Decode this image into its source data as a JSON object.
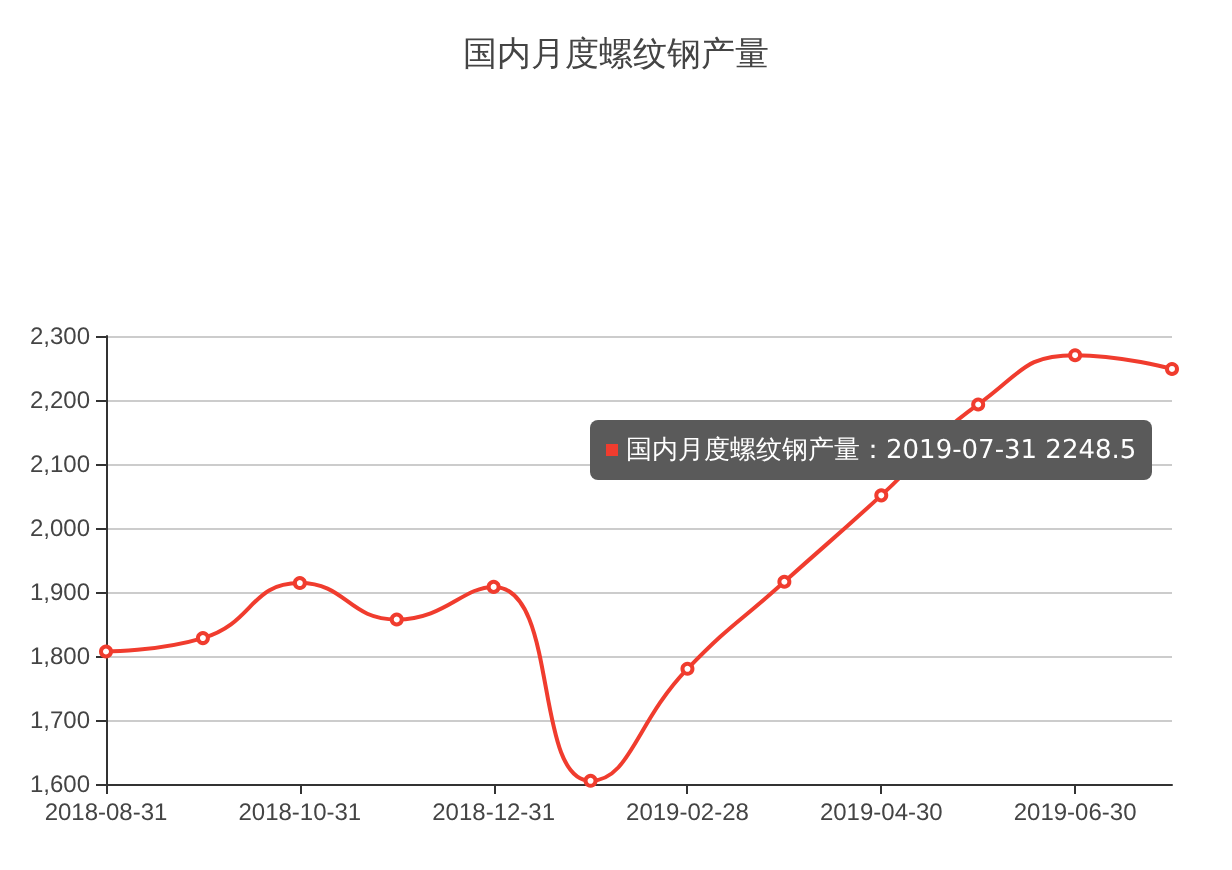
{
  "chart_data": {
    "type": "line",
    "title": "国内月度螺纹钢产量",
    "categories": [
      "2018-08-31",
      null,
      "2018-10-31",
      null,
      "2018-12-31",
      null,
      "2019-02-28",
      null,
      "2019-04-30",
      null,
      "2019-06-30",
      null
    ],
    "series": [
      {
        "color": "#f03c2e",
        "values": [
          1807,
          1828,
          1914,
          1857,
          1908,
          1605,
          1780,
          1916,
          2051,
          2193,
          2270,
          2248.5
        ]
      }
    ],
    "ylim": [
      1600,
      2300
    ],
    "yticks": [
      {
        "value": 1600,
        "label": "1,600"
      },
      {
        "value": 1700,
        "label": "1,700"
      },
      {
        "value": 1800,
        "label": "1,800"
      },
      {
        "value": 1900,
        "label": "1,900"
      },
      {
        "value": 2000,
        "label": "2,000"
      },
      {
        "value": 2100,
        "label": "2,100"
      },
      {
        "value": 2200,
        "label": "2,200"
      },
      {
        "value": 2300,
        "label": "2,300"
      }
    ],
    "grid": "y",
    "marker": "circle",
    "line_style": "solid",
    "annotations": [
      "国内月度螺纹钢产量：2019-07-31 2248.5"
    ]
  }
}
